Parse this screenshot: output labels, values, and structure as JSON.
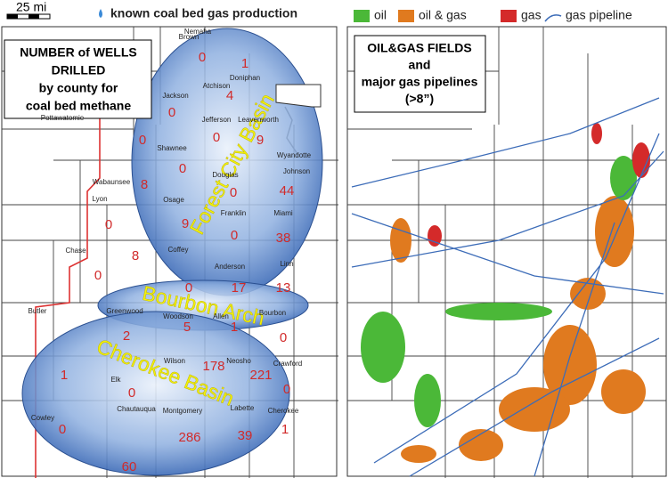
{
  "left_map": {
    "scale_label": "25 mi",
    "legend_label": "known coal bed gas production",
    "title_lines": [
      "NUMBER of WELLS",
      "DRILLED",
      "by county for",
      "coal bed methane"
    ],
    "basins": [
      "Forest City Basin",
      "Bourbon Arch",
      "Cherokee Basin"
    ],
    "counties": [
      "Nemaha",
      "Brown",
      "Doniphan",
      "Jackson",
      "Atchison",
      "Pottawatomie",
      "Jefferson",
      "Leavenworth",
      "Shawnee",
      "Wyandotte",
      "Johnson",
      "Douglas",
      "Wabaunsee",
      "Osage",
      "Franklin",
      "Miami",
      "Lyon",
      "Coffey",
      "Anderson",
      "Linn",
      "Chase",
      "Butler",
      "Greenwood",
      "Woodson",
      "Allen",
      "Bourbon",
      "Wilson",
      "Neosho",
      "Crawford",
      "Elk",
      "Cowley",
      "Chautauqua",
      "Montgomery",
      "Labette",
      "Cherokee"
    ],
    "well_counts": [
      "0",
      "1",
      "4",
      "0",
      "0",
      "0",
      "9",
      "0",
      "8",
      "0",
      "44",
      "0",
      "9",
      "0",
      "38",
      "8",
      "0",
      "0",
      "17",
      "13",
      "5",
      "1",
      "0",
      "2",
      "178",
      "221",
      "1",
      "0",
      "0",
      "0",
      "60",
      "286",
      "39",
      "1"
    ]
  },
  "right_map": {
    "title_lines": [
      "OIL&GAS FIELDS",
      "and",
      "major gas pipelines",
      "(>8”)"
    ],
    "legend": [
      {
        "label": "oil",
        "color": "#4bb838"
      },
      {
        "label": "oil & gas",
        "color": "#e07a1f"
      },
      {
        "label": "gas",
        "color": "#d42a2a"
      },
      {
        "label": "gas pipeline",
        "color": "#3c6cb8"
      }
    ]
  }
}
